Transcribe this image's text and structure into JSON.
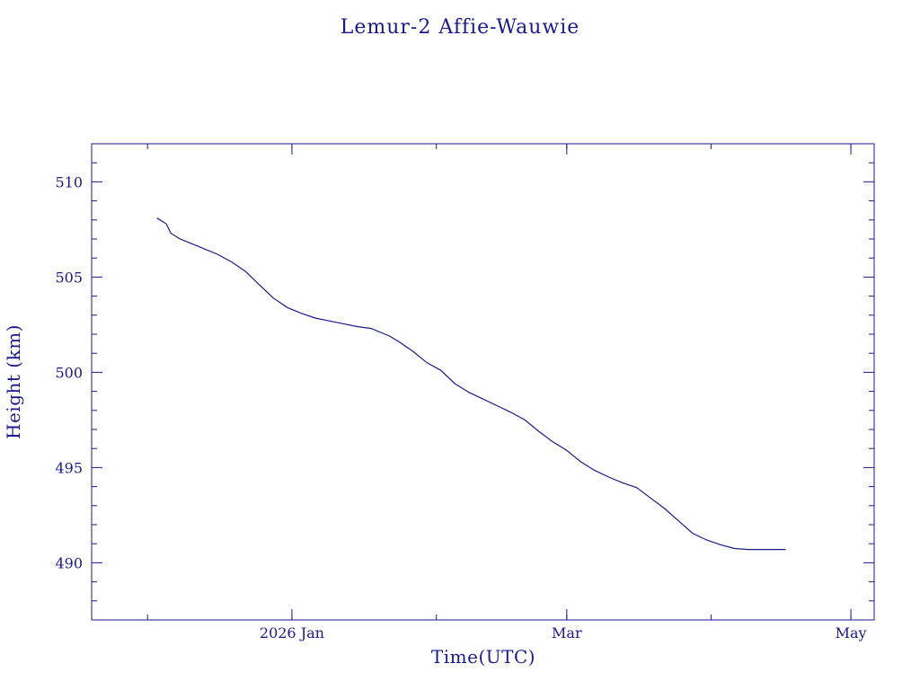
{
  "chart_data": {
    "type": "line",
    "title": "Lemur-2 Affie-Wauwie",
    "xlabel": "Time(UTC)",
    "ylabel": "Height (km)",
    "xlim": [
      "2025-11-19",
      "2026-05-06"
    ],
    "ylim": [
      487,
      512
    ],
    "x_ticks": [
      {
        "date": "2026-01-01",
        "label": "2026 Jan"
      },
      {
        "date": "2026-03-01",
        "label": "Mar"
      },
      {
        "date": "2026-05-01",
        "label": "May"
      }
    ],
    "y_ticks": [
      490,
      495,
      500,
      505,
      510
    ],
    "grid": false,
    "legend": "none",
    "line_color": "#1a1a8c",
    "series": [
      {
        "x": [
          "2025-12-03",
          "2025-12-05",
          "2025-12-06",
          "2025-12-08",
          "2025-12-10",
          "2025-12-13",
          "2025-12-16",
          "2025-12-19",
          "2025-12-22",
          "2025-12-25",
          "2025-12-28",
          "2025-12-31",
          "2026-01-03",
          "2026-01-06",
          "2026-01-09",
          "2026-01-12",
          "2026-01-15",
          "2026-01-18",
          "2026-01-21",
          "2026-01-22",
          "2026-01-24",
          "2026-01-27",
          "2026-01-30",
          "2026-02-02",
          "2026-02-05",
          "2026-02-08",
          "2026-02-11",
          "2026-02-14",
          "2026-02-17",
          "2026-02-20",
          "2026-02-23",
          "2026-02-26",
          "2026-03-01",
          "2026-03-04",
          "2026-03-07",
          "2026-03-10",
          "2026-03-13",
          "2026-03-16",
          "2026-03-19",
          "2026-03-22",
          "2026-03-25",
          "2026-03-28",
          "2026-03-31",
          "2026-04-03",
          "2026-04-06",
          "2026-04-09",
          "2026-04-12",
          "2026-04-15",
          "2026-04-17"
        ],
        "y": [
          508.1,
          507.8,
          507.3,
          507.0,
          506.8,
          506.5,
          506.2,
          505.8,
          505.3,
          504.6,
          503.9,
          503.4,
          503.1,
          502.85,
          502.7,
          502.55,
          502.4,
          502.3,
          502.0,
          501.9,
          501.6,
          501.1,
          500.5,
          500.1,
          499.4,
          498.95,
          498.6,
          498.25,
          497.9,
          497.5,
          496.9,
          496.35,
          495.9,
          495.3,
          494.85,
          494.5,
          494.2,
          493.95,
          493.4,
          492.85,
          492.2,
          491.55,
          491.2,
          490.95,
          490.75,
          490.7,
          490.7,
          490.7,
          490.7
        ]
      }
    ]
  }
}
